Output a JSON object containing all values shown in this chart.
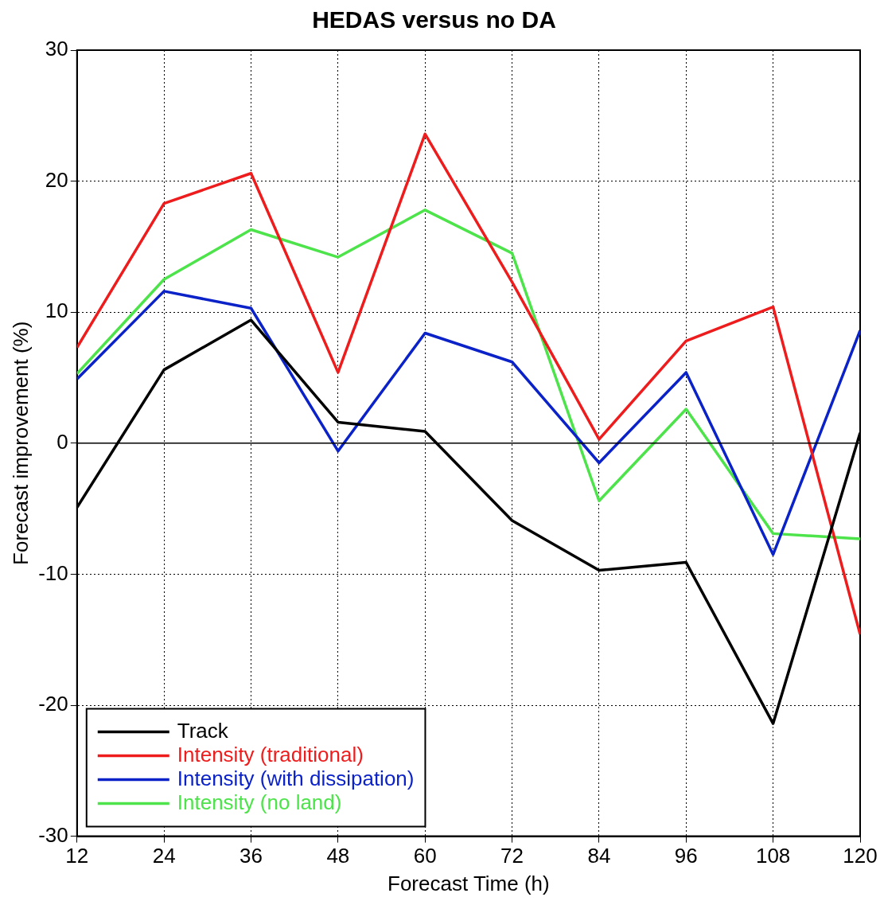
{
  "chart_data": {
    "type": "line",
    "title": "HEDAS versus no DA",
    "xlabel": "Forecast Time (h)",
    "ylabel": "Forecast improvement (%)",
    "x": [
      12,
      24,
      36,
      48,
      60,
      72,
      84,
      96,
      108,
      120
    ],
    "series": [
      {
        "name": "Track",
        "color": "#000000",
        "values": [
          -4.9,
          5.6,
          9.4,
          1.6,
          0.9,
          -5.9,
          -9.7,
          -9.1,
          -21.4,
          0.8
        ]
      },
      {
        "name": "Intensity (traditional)",
        "color": "#ee1c1c",
        "values": [
          7.3,
          18.3,
          20.6,
          5.4,
          23.6,
          12.3,
          0.3,
          7.8,
          10.4,
          -14.6
        ]
      },
      {
        "name": "Intensity (with dissipation)",
        "color": "#0b22c8",
        "values": [
          4.9,
          11.6,
          10.3,
          -0.6,
          8.4,
          6.2,
          -1.5,
          5.4,
          -8.5,
          8.6
        ]
      },
      {
        "name": "Intensity (no land)",
        "color": "#4de34a",
        "values": [
          5.3,
          12.5,
          16.3,
          14.2,
          17.8,
          14.5,
          -4.4,
          2.6,
          -6.9,
          -7.3
        ]
      }
    ],
    "xlim": [
      12,
      120
    ],
    "xticks": [
      12,
      24,
      36,
      48,
      60,
      72,
      84,
      96,
      108,
      120
    ],
    "ylim": [
      -30,
      30
    ],
    "yticks": [
      -30,
      -20,
      -10,
      0,
      10,
      20,
      30
    ],
    "ref_lines": [
      {
        "axis": "y",
        "value": 0,
        "color": "#000000"
      }
    ],
    "grid": true,
    "legend": "bottom left",
    "marker": "none",
    "line_style": "solid"
  }
}
